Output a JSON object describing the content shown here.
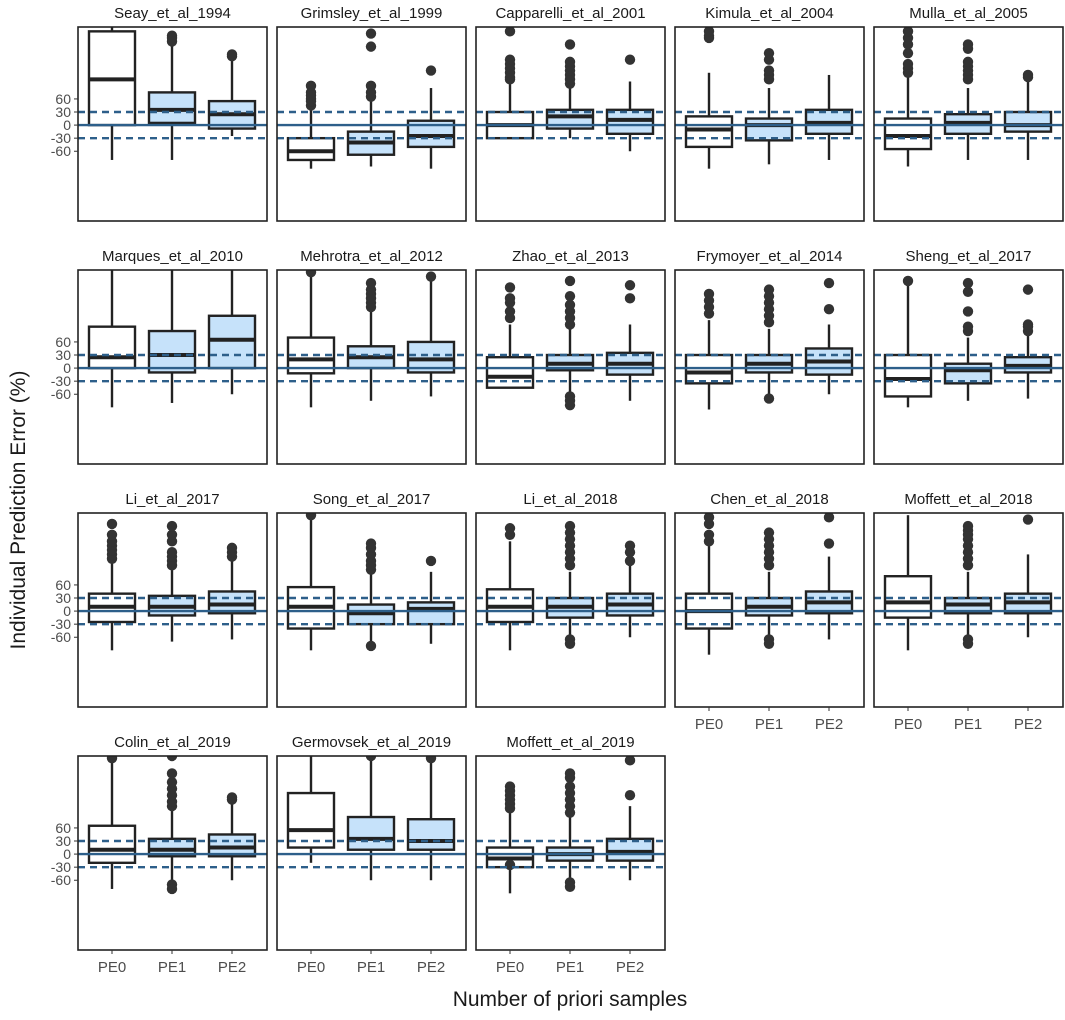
{
  "chart_data": {
    "type": "box",
    "title": "",
    "xlabel": "Number of priori samples",
    "ylabel": "Individual Prediction Error (%)",
    "categories": [
      "PE0",
      "PE1",
      "PE2"
    ],
    "y_ticks": [
      "60",
      "30",
      "0",
      "-30",
      "-60"
    ],
    "ylim": [
      -220,
      225
    ],
    "reference_lines": {
      "solid": 0,
      "dashed": [
        30,
        -30
      ]
    },
    "colors": {
      "PE0": "#ffffff",
      "PE1": "#c6e2fa",
      "PE2": "#c6e2fa",
      "stroke": "#222222",
      "ref_line": "#2d5f8a"
    },
    "panels": [
      {
        "title": "Seay_et_al_1994",
        "boxes": [
          {
            "low": -80,
            "q1": 0,
            "median": 105,
            "q3": 215,
            "high": 230,
            "outliers": []
          },
          {
            "low": -80,
            "q1": 5,
            "median": 35,
            "q3": 75,
            "high": 195,
            "outliers": [
              205,
              200,
              192
            ]
          },
          {
            "low": -25,
            "q1": -8,
            "median": 25,
            "q3": 55,
            "high": 150,
            "outliers": [
              158,
              162
            ]
          }
        ]
      },
      {
        "title": "Grimsley_et_al_1999",
        "boxes": [
          {
            "low": -100,
            "q1": -80,
            "median": -60,
            "q3": -30,
            "high": 40,
            "outliers": [
              45,
              55,
              60,
              68,
              75,
              90
            ]
          },
          {
            "low": -95,
            "q1": -68,
            "median": -40,
            "q3": -15,
            "high": 55,
            "outliers": [
              65,
              75,
              90,
              180,
              210
            ]
          },
          {
            "low": -100,
            "q1": -50,
            "median": -25,
            "q3": 10,
            "high": 85,
            "outliers": [
              125
            ]
          }
        ]
      },
      {
        "title": "Capparelli_et_al_2001",
        "boxes": [
          {
            "low": -30,
            "q1": -30,
            "median": 0,
            "q3": 30,
            "high": 95,
            "outliers": [
              105,
              110,
              120,
              130,
              140,
              150,
              215
            ]
          },
          {
            "low": -30,
            "q1": -8,
            "median": 20,
            "q3": 35,
            "high": 85,
            "outliers": [
              95,
              105,
              115,
              125,
              135,
              145,
              185
            ]
          },
          {
            "low": -60,
            "q1": -20,
            "median": 12,
            "q3": 35,
            "high": 100,
            "outliers": [
              150
            ]
          }
        ]
      },
      {
        "title": "Kimula_et_al_2004",
        "boxes": [
          {
            "low": -100,
            "q1": -50,
            "median": -10,
            "q3": 20,
            "high": 120,
            "outliers": [
              200,
              205,
              215
            ]
          },
          {
            "low": -90,
            "q1": -35,
            "median": 0,
            "q3": 15,
            "high": 85,
            "outliers": [
              105,
              115,
              125,
              150,
              165
            ]
          },
          {
            "low": -80,
            "q1": -20,
            "median": 5,
            "q3": 35,
            "high": 115,
            "outliers": []
          }
        ]
      },
      {
        "title": "Mulla_et_al_2005",
        "boxes": [
          {
            "low": -95,
            "q1": -55,
            "median": -25,
            "q3": 15,
            "high": 110,
            "outliers": [
              120,
              130,
              140,
              165,
              185,
              200,
              215
            ]
          },
          {
            "low": -80,
            "q1": -20,
            "median": 5,
            "q3": 25,
            "high": 85,
            "outliers": [
              105,
              115,
              125,
              135,
              145,
              175,
              185
            ]
          },
          {
            "low": -80,
            "q1": -15,
            "median": 0,
            "q3": 30,
            "high": 105,
            "outliers": [
              110,
              115
            ]
          }
        ]
      },
      {
        "title": "Marques_et_al_2010",
        "boxes": [
          {
            "low": -90,
            "q1": 0,
            "median": 25,
            "q3": 95,
            "high": 230,
            "outliers": []
          },
          {
            "low": -80,
            "q1": -10,
            "median": 30,
            "q3": 85,
            "high": 230,
            "outliers": []
          },
          {
            "low": -60,
            "q1": 0,
            "median": 65,
            "q3": 120,
            "high": 230,
            "outliers": []
          }
        ]
      },
      {
        "title": "Mehrotra_et_al_2012",
        "boxes": [
          {
            "low": -90,
            "q1": -12,
            "median": 20,
            "q3": 70,
            "high": 215,
            "outliers": [
              220
            ]
          },
          {
            "low": -75,
            "q1": 0,
            "median": 25,
            "q3": 50,
            "high": 130,
            "outliers": [
              140,
              150,
              160,
              170,
              180,
              195
            ]
          },
          {
            "low": -65,
            "q1": -10,
            "median": 20,
            "q3": 60,
            "high": 200,
            "outliers": [
              210
            ]
          }
        ]
      },
      {
        "title": "Zhao_et_al_2013",
        "boxes": [
          {
            "low": -45,
            "q1": -45,
            "median": -20,
            "q3": 25,
            "high": 100,
            "outliers": [
              115,
              130,
              150,
              160,
              185
            ]
          },
          {
            "low": -90,
            "q1": -5,
            "median": 10,
            "q3": 30,
            "high": 90,
            "outliers": [
              100,
              115,
              130,
              145,
              165,
              200,
              -65,
              -75,
              -85
            ]
          },
          {
            "low": -75,
            "q1": -15,
            "median": 10,
            "q3": 35,
            "high": 100,
            "outliers": [
              160,
              190
            ]
          }
        ]
      },
      {
        "title": "Frymoyer_et_al_2014",
        "boxes": [
          {
            "low": -95,
            "q1": -35,
            "median": -10,
            "q3": 30,
            "high": 110,
            "outliers": [
              125,
              140,
              155,
              170
            ]
          },
          {
            "low": -70,
            "q1": -10,
            "median": 10,
            "q3": 30,
            "high": 90,
            "outliers": [
              105,
              120,
              135,
              150,
              165,
              180,
              -70
            ]
          },
          {
            "low": -60,
            "q1": -15,
            "median": 15,
            "q3": 45,
            "high": 100,
            "outliers": [
              135,
              195
            ]
          }
        ]
      },
      {
        "title": "Sheng_et_al_2017",
        "boxes": [
          {
            "low": -90,
            "q1": -65,
            "median": -25,
            "q3": 30,
            "high": 195,
            "outliers": [
              200
            ]
          },
          {
            "low": -75,
            "q1": -35,
            "median": -5,
            "q3": 10,
            "high": 70,
            "outliers": [
              85,
              95,
              130,
              175,
              195
            ]
          },
          {
            "low": -70,
            "q1": -10,
            "median": 5,
            "q3": 25,
            "high": 75,
            "outliers": [
              85,
              95,
              100,
              180
            ]
          }
        ]
      },
      {
        "title": "Li_et_al_2017",
        "boxes": [
          {
            "low": -90,
            "q1": -25,
            "median": 10,
            "q3": 40,
            "high": 110,
            "outliers": [
              120,
              130,
              140,
              150,
              160,
              175,
              200
            ]
          },
          {
            "low": -70,
            "q1": -10,
            "median": 10,
            "q3": 35,
            "high": 100,
            "outliers": [
              105,
              115,
              125,
              135,
              160,
              175,
              195
            ]
          },
          {
            "low": -65,
            "q1": -5,
            "median": 15,
            "q3": 45,
            "high": 115,
            "outliers": [
              125,
              135,
              145
            ]
          }
        ]
      },
      {
        "title": "Song_et_al_2017",
        "boxes": [
          {
            "low": -90,
            "q1": -40,
            "median": 10,
            "q3": 55,
            "high": 215,
            "outliers": [
              220
            ]
          },
          {
            "low": -75,
            "q1": -30,
            "median": -5,
            "q3": 15,
            "high": 85,
            "outliers": [
              -80,
              95,
              105,
              115,
              130,
              145,
              155
            ]
          },
          {
            "low": -75,
            "q1": -30,
            "median": 5,
            "q3": 20,
            "high": 90,
            "outliers": [
              115
            ]
          }
        ]
      },
      {
        "title": "Li_et_al_2018",
        "boxes": [
          {
            "low": -90,
            "q1": -25,
            "median": 10,
            "q3": 50,
            "high": 160,
            "outliers": [
              175,
              190
            ]
          },
          {
            "low": -70,
            "q1": -15,
            "median": 10,
            "q3": 30,
            "high": 90,
            "outliers": [
              -65,
              -75,
              105,
              120,
              135,
              150,
              165,
              180,
              195
            ]
          },
          {
            "low": -60,
            "q1": -10,
            "median": 15,
            "q3": 40,
            "high": 105,
            "outliers": [
              115,
              135,
              150
            ]
          }
        ]
      },
      {
        "title": "Chen_et_al_2018",
        "boxes": [
          {
            "low": -100,
            "q1": -40,
            "median": 0,
            "q3": 40,
            "high": 150,
            "outliers": [
              160,
              175,
              200,
              215
            ]
          },
          {
            "low": -75,
            "q1": -10,
            "median": 10,
            "q3": 30,
            "high": 90,
            "outliers": [
              -65,
              -75,
              105,
              120,
              135,
              150,
              165,
              180
            ]
          },
          {
            "low": -65,
            "q1": -5,
            "median": 20,
            "q3": 45,
            "high": 125,
            "outliers": [
              155,
              215
            ]
          }
        ]
      },
      {
        "title": "Moffett_et_al_2018",
        "boxes": [
          {
            "low": -90,
            "q1": -15,
            "median": 20,
            "q3": 80,
            "high": 220,
            "outliers": []
          },
          {
            "low": -70,
            "q1": -5,
            "median": 15,
            "q3": 30,
            "high": 90,
            "outliers": [
              -65,
              -75,
              105,
              120,
              135,
              150,
              165,
              175,
              185,
              195
            ]
          },
          {
            "low": -60,
            "q1": -5,
            "median": 20,
            "q3": 40,
            "high": 130,
            "outliers": [
              210
            ]
          }
        ]
      },
      {
        "title": "Colin_et_al_2019",
        "boxes": [
          {
            "low": -80,
            "q1": -20,
            "median": 10,
            "q3": 65,
            "high": 215,
            "outliers": [
              220,
              225
            ]
          },
          {
            "low": -75,
            "q1": -5,
            "median": 10,
            "q3": 35,
            "high": 100,
            "outliers": [
              -70,
              -80,
              110,
              120,
              135,
              150,
              165,
              185,
              225
            ]
          },
          {
            "low": -60,
            "q1": -5,
            "median": 15,
            "q3": 45,
            "high": 115,
            "outliers": [
              125,
              130
            ]
          }
        ]
      },
      {
        "title": "Germovsek_et_al_2019",
        "boxes": [
          {
            "low": -20,
            "q1": 15,
            "median": 55,
            "q3": 140,
            "high": 225,
            "outliers": []
          },
          {
            "low": -60,
            "q1": 10,
            "median": 35,
            "q3": 85,
            "high": 215,
            "outliers": [
              225
            ]
          },
          {
            "low": -60,
            "q1": 10,
            "median": 30,
            "q3": 80,
            "high": 215,
            "outliers": [
              220
            ]
          }
        ]
      },
      {
        "title": "Moffett_et_al_2019",
        "boxes": [
          {
            "low": -90,
            "q1": -30,
            "median": -10,
            "q3": 15,
            "high": 95,
            "outliers": [
              -25,
              105,
              115,
              125,
              135,
              145,
              155
            ]
          },
          {
            "low": -80,
            "q1": -15,
            "median": 0,
            "q3": 15,
            "high": 85,
            "outliers": [
              -65,
              -75,
              95,
              110,
              125,
              140,
              155,
              175,
              185
            ]
          },
          {
            "low": -60,
            "q1": -15,
            "median": 5,
            "q3": 35,
            "high": 110,
            "outliers": [
              135,
              215
            ]
          }
        ]
      }
    ]
  }
}
